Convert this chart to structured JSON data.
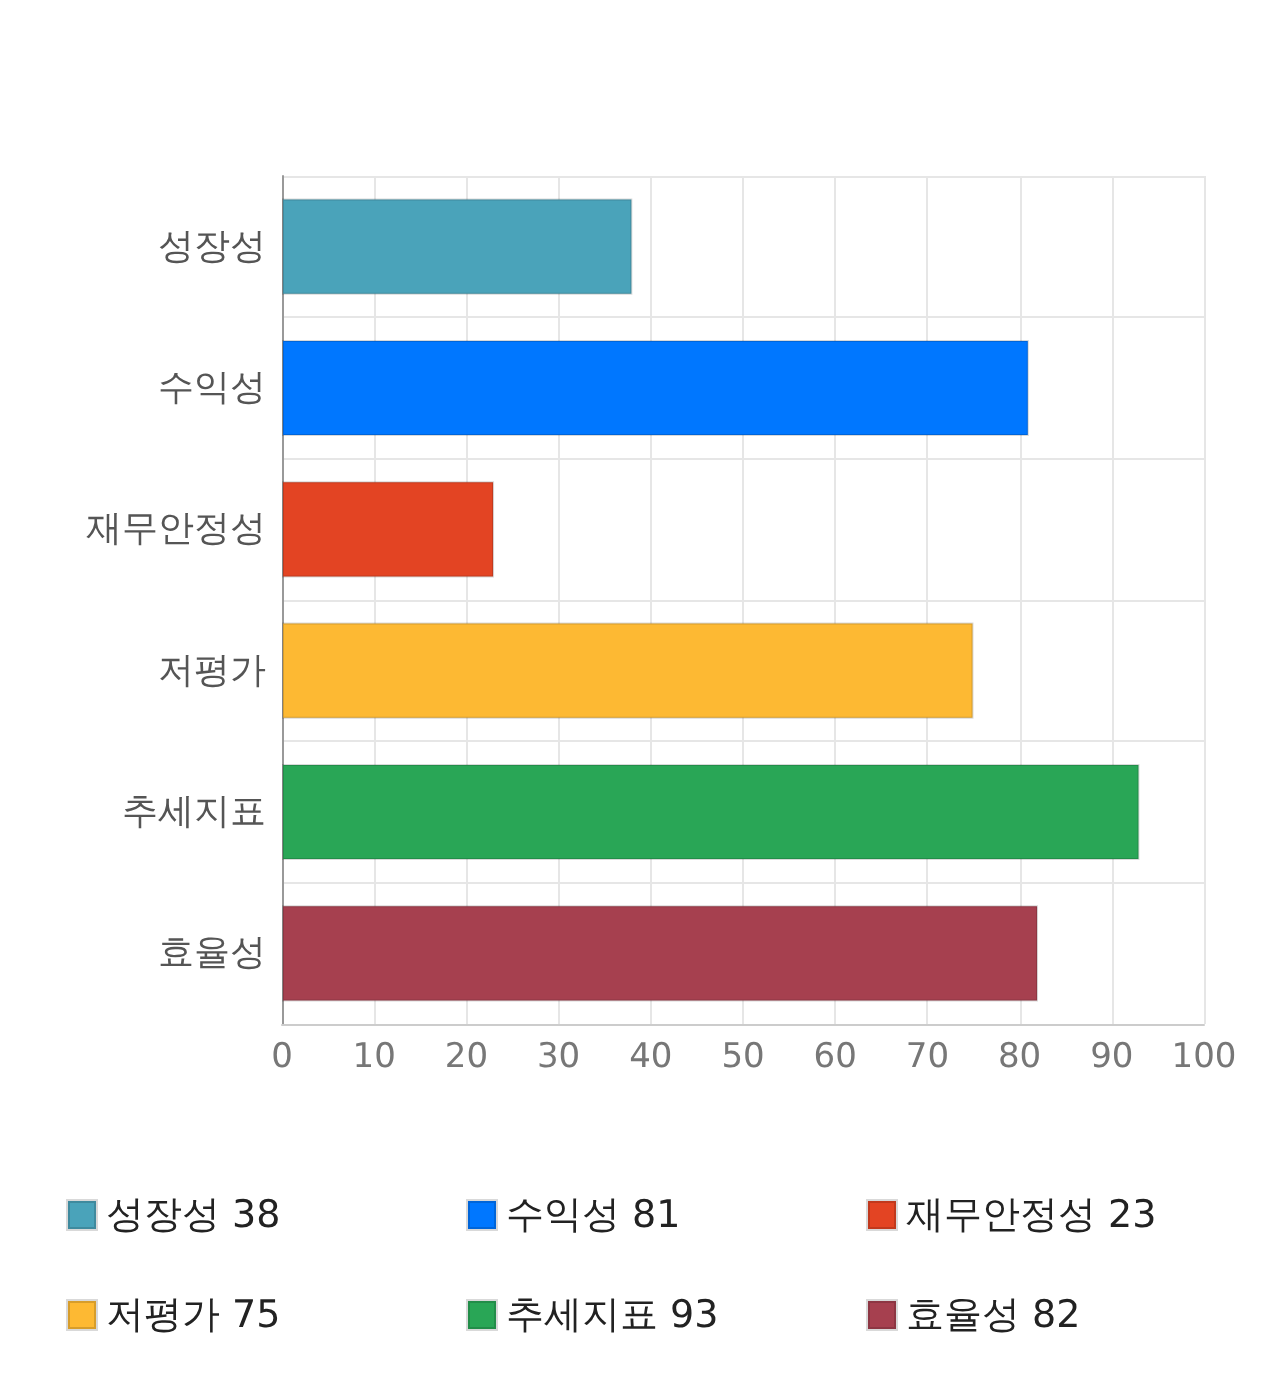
{
  "chart_data": {
    "type": "bar",
    "orientation": "horizontal",
    "stacked": true,
    "categories": [
      "성장성",
      "수익성",
      "재무안정성",
      "저평가",
      "추세지표",
      "효율성"
    ],
    "series": [
      {
        "name": "성장성 38",
        "color": "#4aa3ba",
        "values": [
          38,
          null,
          null,
          null,
          null,
          null
        ]
      },
      {
        "name": "수익성 81",
        "color": "#0077ff",
        "values": [
          null,
          81,
          null,
          null,
          null,
          null
        ]
      },
      {
        "name": "재무안정성 23",
        "color": "#e34423",
        "values": [
          null,
          null,
          23,
          null,
          null,
          null
        ]
      },
      {
        "name": "저평가 75",
        "color": "#fdb933",
        "values": [
          null,
          null,
          null,
          75,
          null,
          null
        ]
      },
      {
        "name": "추세지표 93",
        "color": "#29a656",
        "values": [
          null,
          null,
          null,
          null,
          93,
          null
        ]
      },
      {
        "name": "효율성 82",
        "color": "#a6404f",
        "values": [
          null,
          null,
          null,
          null,
          null,
          82
        ]
      }
    ],
    "xlim": [
      0,
      100
    ],
    "xticks": [
      0,
      10,
      20,
      30,
      40,
      50,
      60,
      70,
      80,
      90,
      100
    ],
    "grid": true,
    "legend": "bottom"
  }
}
